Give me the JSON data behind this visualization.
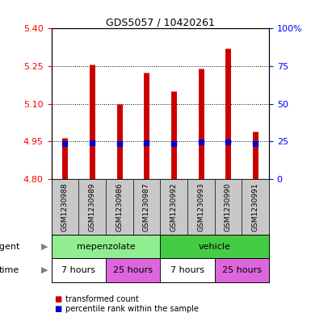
{
  "title": "GDS5057 / 10420261",
  "samples": [
    "GSM1230988",
    "GSM1230989",
    "GSM1230986",
    "GSM1230987",
    "GSM1230992",
    "GSM1230993",
    "GSM1230990",
    "GSM1230991"
  ],
  "bar_tops": [
    4.965,
    5.255,
    5.1,
    5.225,
    5.15,
    5.24,
    5.32,
    4.99
  ],
  "bar_bottom": 4.8,
  "percentile_values": [
    4.94,
    4.944,
    4.94,
    4.944,
    4.94,
    4.948,
    4.948,
    4.94
  ],
  "ylim_left": [
    4.8,
    5.4
  ],
  "ylim_right": [
    0,
    100
  ],
  "yticks_left": [
    4.8,
    4.95,
    5.1,
    5.25,
    5.4
  ],
  "yticks_right": [
    0,
    25,
    50,
    75,
    100
  ],
  "grid_ticks": [
    4.95,
    5.1,
    5.25
  ],
  "bar_color": "#cc0000",
  "percentile_color": "#0000cc",
  "agent_groups": [
    {
      "label": "mepenzolate",
      "start": 0,
      "end": 4,
      "color": "#90ee90"
    },
    {
      "label": "vehicle",
      "start": 4,
      "end": 8,
      "color": "#44cc44"
    }
  ],
  "time_groups": [
    {
      "label": "7 hours",
      "start": 0,
      "end": 2,
      "color": "#ffffff"
    },
    {
      "label": "25 hours",
      "start": 2,
      "end": 4,
      "color": "#dd66dd"
    },
    {
      "label": "7 hours",
      "start": 4,
      "end": 6,
      "color": "#ffffff"
    },
    {
      "label": "25 hours",
      "start": 6,
      "end": 8,
      "color": "#dd66dd"
    }
  ],
  "legend_items": [
    {
      "label": "transformed count",
      "color": "#cc0000"
    },
    {
      "label": "percentile rank within the sample",
      "color": "#0000cc"
    }
  ],
  "names_bg": "#c8c8c8",
  "background_color": "#ffffff",
  "title_fontsize": 9,
  "bar_linewidth": 5
}
